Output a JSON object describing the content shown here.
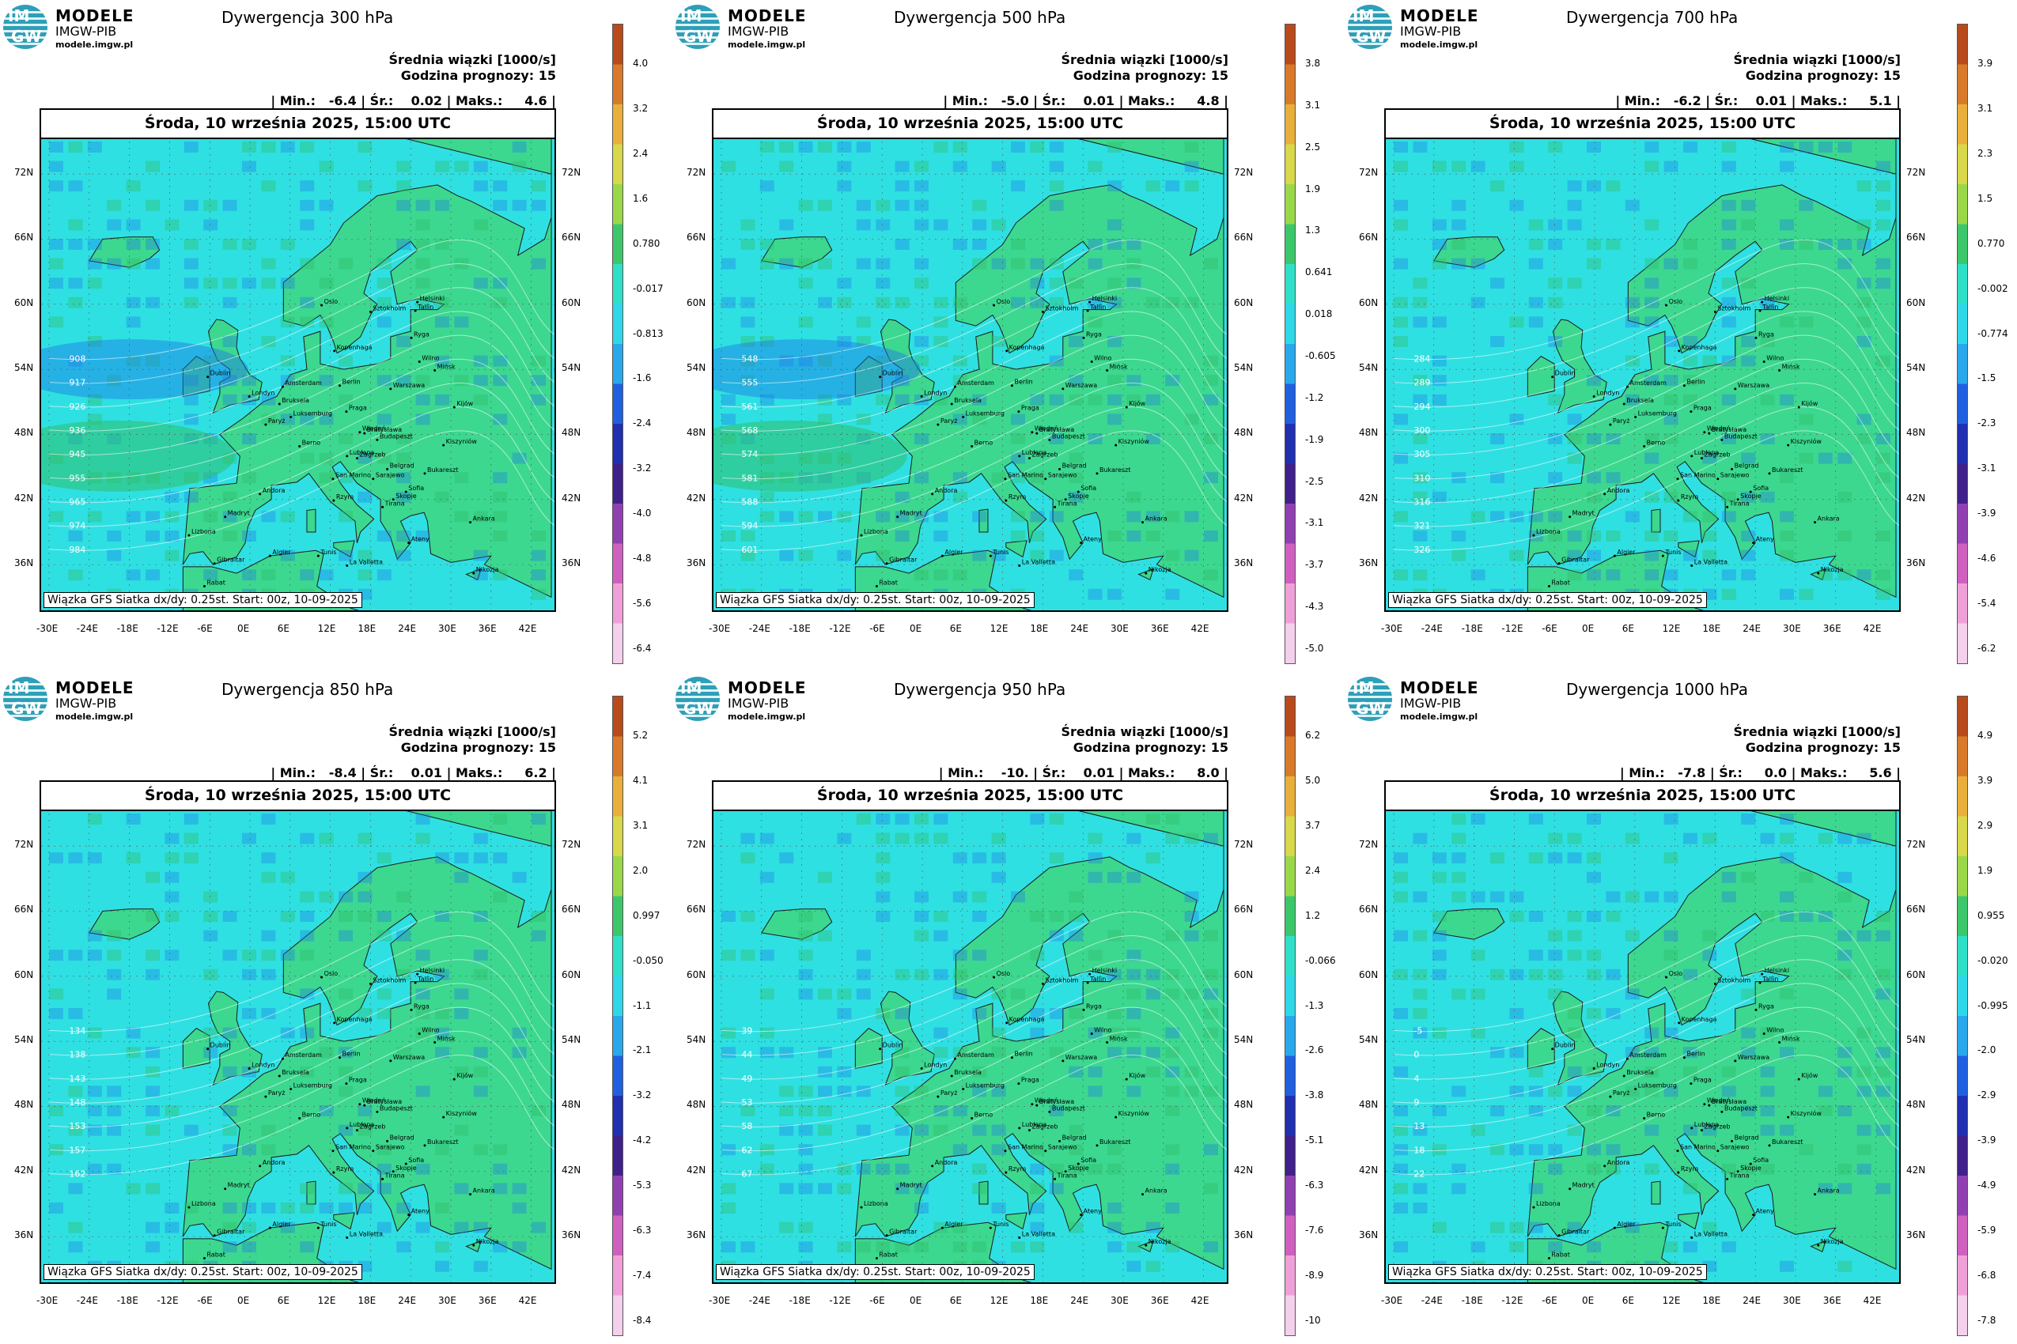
{
  "logo": {
    "line1": "MODELE",
    "line2": "IMGW-PIB",
    "line3": "modele.imgw.pl",
    "mark_top": "IM",
    "mark_bottom": "GW"
  },
  "common": {
    "subtitle": "Średnia wiązki [1000/s]",
    "forecast_hour": "Godzina prognozy: 15",
    "date": "Środa, 10 września 2025, 15:00 UTC",
    "source": "Wiązka GFS Siatka dx/dy: 0.25st. Start: 00z, 10-09-2025",
    "lat_labels": [
      "72N",
      "66N",
      "60N",
      "54N",
      "48N",
      "42N",
      "36N"
    ],
    "lon_labels": [
      "-30E",
      "-24E",
      "-18E",
      "-12E",
      "-6E",
      "0E",
      "6E",
      "12E",
      "18E",
      "24E",
      "30E",
      "36E",
      "42E"
    ]
  },
  "colors": {
    "ocean": "#2fe0e2",
    "land": "#3cd890",
    "negative": "#1c78e8",
    "positive": "#2fbf6a",
    "map_border": "#000000"
  },
  "cities": [
    "Oslo",
    "Sztokholm",
    "Helsinki",
    "Tallin",
    "Ryga",
    "Kopenhaga",
    "Wilno",
    "Mińsk",
    "Amsterdam",
    "Berlin",
    "Warszawa",
    "Londyn",
    "Bruksela",
    "Luksemburg",
    "Paryż",
    "Praga",
    "Kijów",
    "Wiedeń",
    "Bratysława",
    "Budapeszt",
    "Kiszyniów",
    "Berno",
    "Zagrzeb",
    "Lublana",
    "Belgrad",
    "Bukareszt",
    "Andora",
    "San Marino",
    "Sarajewo",
    "Sofia",
    "Madryt",
    "Rzym",
    "Skopje",
    "Tirana",
    "Ankara",
    "Ateny",
    "Lizbona",
    "Algier",
    "Tunis",
    "La Valletta",
    "Gibraltar",
    "Rabat",
    "Nikozja",
    "Dublin"
  ],
  "panels": [
    {
      "title": "Dywergencja 300 hPa",
      "stats": "| Min.:   -6.4 | Śr.:    0.02 | Maks.:     4.6 |",
      "colorbar": [
        "4.0",
        "3.2",
        "2.4",
        "1.6",
        "0.780",
        "-0.017",
        "-0.813",
        "-1.6",
        "-2.4",
        "-3.2",
        "-4.0",
        "-4.8",
        "-5.6",
        "-6.4"
      ],
      "contour_labels": [
        "908",
        "917",
        "926",
        "936",
        "945",
        "955",
        "965",
        "974",
        "984"
      ]
    },
    {
      "title": "Dywergencja 500 hPa",
      "stats": "| Min.:   -5.0 | Śr.:    0.01 | Maks.:     4.8 |",
      "colorbar": [
        "3.8",
        "3.1",
        "2.5",
        "1.9",
        "1.3",
        "0.641",
        "0.018",
        "-0.605",
        "-1.2",
        "-1.9",
        "-2.5",
        "-3.1",
        "-3.7",
        "-4.3",
        "-5.0"
      ],
      "contour_labels": [
        "548",
        "555",
        "561",
        "568",
        "574",
        "581",
        "588",
        "594",
        "601"
      ]
    },
    {
      "title": "Dywergencja 700 hPa",
      "stats": "| Min.:   -6.2 | Śr.:    0.01 | Maks.:     5.1 |",
      "colorbar": [
        "3.9",
        "3.1",
        "2.3",
        "1.5",
        "0.770",
        "-0.002",
        "-0.774",
        "-1.5",
        "-2.3",
        "-3.1",
        "-3.9",
        "-4.6",
        "-5.4",
        "-6.2"
      ],
      "contour_labels": [
        "284",
        "289",
        "294",
        "300",
        "305",
        "310",
        "316",
        "321",
        "326"
      ]
    },
    {
      "title": "Dywergencja 850 hPa",
      "stats": "| Min.:   -8.4 | Śr.:    0.01 | Maks.:     6.2 |",
      "colorbar": [
        "5.2",
        "4.1",
        "3.1",
        "2.0",
        "0.997",
        "-0.050",
        "-1.1",
        "-2.1",
        "-3.2",
        "-4.2",
        "-5.3",
        "-6.3",
        "-7.4",
        "-8.4"
      ],
      "contour_labels": [
        "134",
        "138",
        "143",
        "148",
        "153",
        "157",
        "162"
      ]
    },
    {
      "title": "Dywergencja 950 hPa",
      "stats": "| Min.:    -10. | Śr.:    0.01 | Maks.:     8.0 |",
      "colorbar": [
        "6.2",
        "5.0",
        "3.7",
        "2.4",
        "1.2",
        "-0.066",
        "-1.3",
        "-2.6",
        "-3.8",
        "-5.1",
        "-6.3",
        "-7.6",
        "-8.9",
        "-10"
      ],
      "contour_labels": [
        "39",
        "44",
        "49",
        "53",
        "58",
        "62",
        "67"
      ]
    },
    {
      "title": "Dywergencja 1000 hPa",
      "stats": "| Min.:   -7.8 | Śr.:     0.0 | Maks.:     5.6 |",
      "colorbar": [
        "4.9",
        "3.9",
        "2.9",
        "1.9",
        "0.955",
        "-0.020",
        "-0.995",
        "-2.0",
        "-2.9",
        "-3.9",
        "-4.9",
        "-5.9",
        "-6.8",
        "-7.8"
      ],
      "contour_labels": [
        "-5",
        "0",
        "4",
        "9",
        "13",
        "18",
        "22"
      ]
    }
  ]
}
